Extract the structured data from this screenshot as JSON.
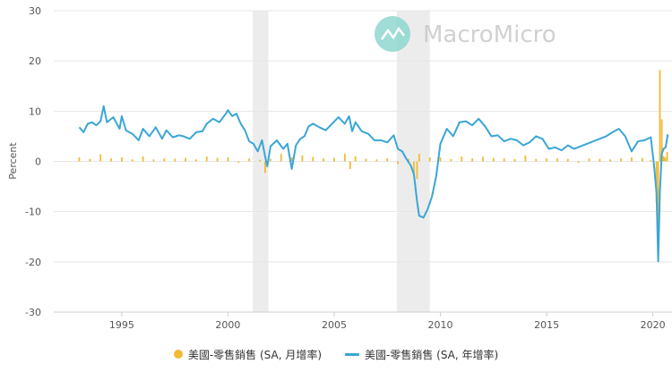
{
  "watermark": "MacroMicro",
  "chart_data": {
    "type": "bar+line",
    "ylabel": "Percent",
    "ylim": [
      -30,
      30
    ],
    "yticks": [
      -30,
      -20,
      -10,
      0,
      10,
      20,
      30
    ],
    "xlim": [
      1991.8,
      2020.9
    ],
    "xticks": [
      "1995",
      "2000",
      "2005",
      "2010",
      "2015",
      "2020"
    ],
    "recessions": [
      [
        2001.17,
        2001.9
      ],
      [
        2007.95,
        2009.5
      ]
    ],
    "colors": {
      "mom": "#f3b934",
      "yoy": "#3aa6d6",
      "recession": "#ececec"
    },
    "series": [
      {
        "name": "美國-零售銷售 (SA, 月增率)",
        "type": "bar",
        "x": [
          1993.0,
          1993.5,
          1994.0,
          1994.5,
          1995.0,
          1995.5,
          1996.0,
          1996.5,
          1997.0,
          1997.5,
          1998.0,
          1998.5,
          1999.0,
          1999.5,
          2000.0,
          2000.5,
          2001.0,
          2001.5,
          2001.75,
          2002.0,
          2002.5,
          2003.0,
          2003.5,
          2004.0,
          2004.5,
          2005.0,
          2005.5,
          2005.75,
          2006.0,
          2006.5,
          2007.0,
          2007.5,
          2008.0,
          2008.5,
          2008.75,
          2008.9,
          2009.0,
          2009.5,
          2010.0,
          2010.5,
          2011.0,
          2011.5,
          2012.0,
          2012.5,
          2013.0,
          2013.5,
          2014.0,
          2014.5,
          2015.0,
          2015.5,
          2016.0,
          2016.5,
          2017.0,
          2017.5,
          2018.0,
          2018.5,
          2019.0,
          2019.5,
          2019.9,
          2020.17,
          2020.25,
          2020.33,
          2020.42,
          2020.5,
          2020.58,
          2020.67
        ],
        "values": [
          0.8,
          0.5,
          1.4,
          0.6,
          0.8,
          0.4,
          1.0,
          0.4,
          0.6,
          0.5,
          0.7,
          0.4,
          1.0,
          0.7,
          0.8,
          -0.3,
          0.6,
          0.3,
          -2.3,
          0.5,
          1.5,
          0.8,
          1.2,
          0.9,
          0.6,
          0.7,
          1.5,
          -1.5,
          1.0,
          0.5,
          0.4,
          0.6,
          -0.5,
          0.5,
          -2.8,
          -3.5,
          1.5,
          0.8,
          0.8,
          0.5,
          1.0,
          0.6,
          0.9,
          0.7,
          0.6,
          0.5,
          1.2,
          0.5,
          0.6,
          0.6,
          0.5,
          -0.3,
          0.6,
          0.5,
          0.4,
          0.6,
          0.8,
          0.7,
          0.3,
          -8.2,
          -14.7,
          18.2,
          8.4,
          1.1,
          0.8,
          1.9
        ]
      },
      {
        "name": "美國-零售銷售 (SA, 年增率)",
        "type": "line",
        "x": [
          1993.0,
          1993.2,
          1993.4,
          1993.6,
          1993.8,
          1994.0,
          1994.15,
          1994.3,
          1994.6,
          1994.9,
          1995.0,
          1995.2,
          1995.5,
          1995.8,
          1996.0,
          1996.3,
          1996.6,
          1996.9,
          1997.1,
          1997.4,
          1997.7,
          1997.9,
          1998.2,
          1998.5,
          1998.8,
          1999.0,
          1999.3,
          1999.6,
          1999.9,
          2000.0,
          2000.2,
          2000.4,
          2000.6,
          2000.8,
          2001.0,
          2001.2,
          2001.4,
          2001.6,
          2001.75,
          2001.85,
          2002.0,
          2002.3,
          2002.6,
          2002.8,
          2003.0,
          2003.2,
          2003.4,
          2003.6,
          2003.8,
          2004.0,
          2004.3,
          2004.6,
          2004.9,
          2005.2,
          2005.5,
          2005.7,
          2005.85,
          2006.0,
          2006.3,
          2006.6,
          2006.9,
          2007.2,
          2007.5,
          2007.8,
          2008.0,
          2008.2,
          2008.4,
          2008.6,
          2008.75,
          2008.9,
          2009.0,
          2009.2,
          2009.4,
          2009.6,
          2009.8,
          2010.0,
          2010.3,
          2010.6,
          2010.9,
          2011.2,
          2011.5,
          2011.8,
          2012.1,
          2012.4,
          2012.7,
          2013.0,
          2013.3,
          2013.6,
          2013.9,
          2014.2,
          2014.5,
          2014.8,
          2015.1,
          2015.4,
          2015.7,
          2016.0,
          2016.3,
          2016.6,
          2016.9,
          2017.2,
          2017.5,
          2017.8,
          2018.1,
          2018.4,
          2018.7,
          2019.0,
          2019.3,
          2019.6,
          2019.9,
          2020.05,
          2020.17,
          2020.25,
          2020.33,
          2020.42,
          2020.5,
          2020.6,
          2020.7
        ],
        "values": [
          6.8,
          5.8,
          7.5,
          7.8,
          7.2,
          8.0,
          11.0,
          7.8,
          8.8,
          6.5,
          9.0,
          6.2,
          5.5,
          4.2,
          6.5,
          5.0,
          6.8,
          4.5,
          6.2,
          4.8,
          5.2,
          5.0,
          4.5,
          5.8,
          6.0,
          7.5,
          8.5,
          7.8,
          9.5,
          10.2,
          9.0,
          9.5,
          7.5,
          6.2,
          4.0,
          3.5,
          2.0,
          4.2,
          1.0,
          -1.0,
          3.0,
          4.2,
          2.5,
          3.5,
          -1.5,
          3.2,
          4.5,
          5.0,
          7.0,
          7.5,
          6.8,
          6.2,
          7.5,
          8.8,
          7.5,
          9.0,
          6.0,
          7.8,
          6.0,
          5.5,
          4.2,
          4.2,
          3.8,
          5.2,
          2.5,
          2.0,
          0.5,
          -0.8,
          -2.5,
          -8.0,
          -10.8,
          -11.2,
          -9.5,
          -7.0,
          -3.0,
          3.5,
          6.5,
          5.0,
          7.8,
          8.0,
          7.2,
          8.5,
          7.0,
          5.0,
          5.2,
          4.0,
          4.5,
          4.2,
          3.2,
          3.8,
          5.0,
          4.5,
          2.5,
          2.8,
          2.2,
          3.2,
          2.5,
          3.0,
          3.5,
          4.0,
          4.5,
          5.0,
          5.8,
          6.5,
          5.0,
          2.0,
          4.0,
          4.2,
          4.8,
          -0.5,
          -6.2,
          -19.9,
          -6.0,
          1.5,
          2.5,
          2.8,
          5.4
        ]
      }
    ],
    "legend": {
      "position": "bottom"
    }
  }
}
